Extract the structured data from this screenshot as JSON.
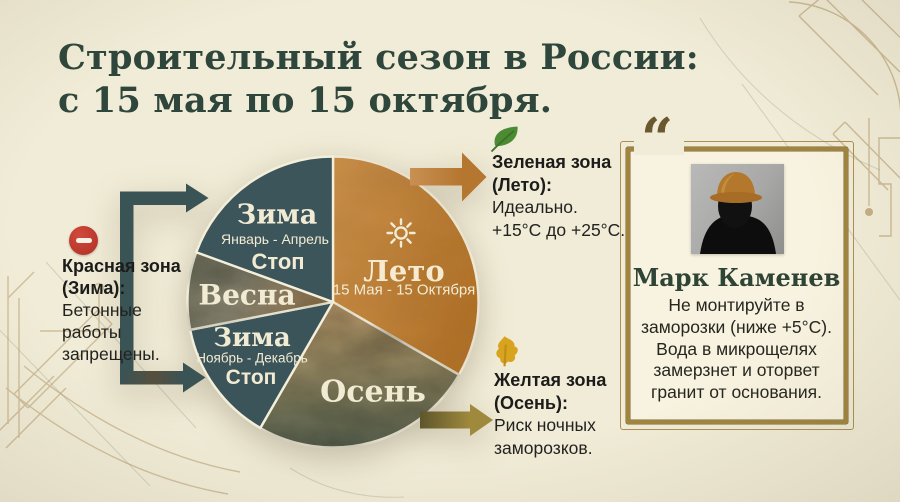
{
  "title": {
    "line1": "Строительный сезон в России:",
    "line2": "с 15 мая по 15 октября."
  },
  "chart_data": {
    "type": "pie",
    "title": "Строительный сезон в России: с 15 мая по 15 октября.",
    "unit": "degrees of pie (clockwise from 12 o'clock)",
    "slices": [
      {
        "label": "Лето",
        "sublabel": "15 Мая - 15 Октября",
        "value_deg": 120,
        "color": "#bd7e34",
        "icon": "sun-icon"
      },
      {
        "label": "Осень",
        "value_deg": 90,
        "color": "#8a7f5f"
      },
      {
        "label": "Зима",
        "sublabel": "Ноябрь - Декабрь",
        "note": "Стоп",
        "value_deg": 49,
        "color": "#3b545a"
      },
      {
        "label": "Весна",
        "value_deg": 31,
        "color": "#6f6f5d"
      },
      {
        "label": "Зима",
        "sublabel": "Январь - Апрель",
        "note": "Стоп",
        "value_deg": 70,
        "color": "#3c555b"
      }
    ],
    "legend_position": "none",
    "grid": false
  },
  "zones": {
    "red": {
      "heading": "Красная зона",
      "subheading": "(Зима):",
      "lines": [
        "Бетонные",
        "работы",
        "запрещены."
      ],
      "icon": "no-entry-icon"
    },
    "green": {
      "heading": "Зеленая зона",
      "subheading": "(Лето):",
      "lines": [
        "Идеально.",
        "+15°C до +25°C."
      ],
      "icon": "green-leaf-icon"
    },
    "yellow": {
      "heading": "Желтая зона",
      "subheading": "(Осень):",
      "lines": [
        "Риск ночных",
        "заморозков."
      ],
      "icon": "yellow-leaf-icon"
    }
  },
  "expert": {
    "quote_mark": "“",
    "name": "Марк Каменев",
    "quote_lines": [
      "Не монтируйте в",
      "заморозки (ниже +5°C).",
      "Вода в микрощелях",
      "замерзнет и оторвет",
      "гранит от основания."
    ]
  },
  "colors": {
    "background": "#f1ecd7",
    "title_green": "#2e463b",
    "dark_teal": "#3a5355",
    "summer_orange": "#b5762f",
    "gold_accent": "#a0853f",
    "red_badge": "#b93a2e",
    "leaf_green": "#4c8b33",
    "leaf_yellow": "#d8a41f",
    "pie_text_cream": "#f2ebd3"
  }
}
